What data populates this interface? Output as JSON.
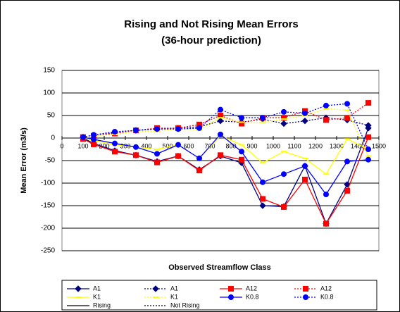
{
  "chart_data": {
    "type": "line",
    "title": "Rising and Not Rising Mean Errors",
    "subtitle": "(36-hour prediction)",
    "x_label": "Observed Streamflow Class",
    "y_label": "Mean Error (m3/s)",
    "x": [
      100,
      150,
      250,
      350,
      450,
      550,
      650,
      750,
      850,
      950,
      1050,
      1150,
      1250,
      1350,
      1450
    ],
    "xlim": [
      0,
      1500
    ],
    "xticks": [
      0,
      100,
      200,
      300,
      400,
      500,
      600,
      700,
      800,
      900,
      1000,
      1100,
      1200,
      1300,
      1400,
      1500
    ],
    "ylim": [
      -250,
      150
    ],
    "yticks": [
      -250,
      -200,
      -150,
      -100,
      -50,
      0,
      50,
      100,
      150
    ],
    "grid": true,
    "legend": "bottom",
    "series": [
      {
        "name": "A1",
        "color": "#000080",
        "marker": "diamond",
        "dash": false,
        "values": [
          0,
          -12,
          -28,
          -38,
          -52,
          -40,
          -70,
          -40,
          -55,
          -150,
          -152,
          -62,
          -190,
          -103,
          22
        ]
      },
      {
        "name": "A1",
        "color": "#000080",
        "marker": "diamond",
        "dash": true,
        "values": [
          2,
          5,
          12,
          17,
          20,
          22,
          25,
          38,
          35,
          42,
          32,
          38,
          45,
          40,
          28
        ]
      },
      {
        "name": "A12",
        "color": "#ff0000",
        "marker": "square",
        "dash": false,
        "values": [
          -2,
          -14,
          -30,
          -38,
          -54,
          -40,
          -72,
          -38,
          -48,
          -135,
          -153,
          -92,
          -190,
          -117,
          2
        ]
      },
      {
        "name": "A12",
        "color": "#ff0000",
        "marker": "square",
        "dash": true,
        "values": [
          2,
          5,
          10,
          17,
          22,
          22,
          30,
          50,
          32,
          45,
          45,
          60,
          40,
          45,
          78
        ]
      },
      {
        "name": "K1",
        "color": "#ffff00",
        "marker": "dash",
        "dash": false,
        "values": [
          0,
          -5,
          -15,
          -20,
          -25,
          -15,
          -45,
          5,
          -15,
          -55,
          -30,
          -45,
          -80,
          -2,
          -25
        ]
      },
      {
        "name": "K1",
        "color": "#ffff00",
        "marker": "dash",
        "dash": true,
        "values": [
          2,
          5,
          8,
          15,
          15,
          20,
          18,
          45,
          35,
          35,
          42,
          50,
          65,
          62,
          -40
        ]
      },
      {
        "name": "K0.8",
        "color": "#0000ff",
        "marker": "circle",
        "dash": false,
        "values": [
          2,
          -3,
          -12,
          -20,
          -35,
          -15,
          -45,
          8,
          -30,
          -98,
          -80,
          -62,
          -125,
          -52,
          -48
        ]
      },
      {
        "name": "K0.8",
        "color": "#0000ff",
        "marker": "circle",
        "dash": true,
        "values": [
          2,
          7,
          14,
          17,
          20,
          20,
          22,
          63,
          45,
          45,
          58,
          55,
          72,
          76,
          -25
        ]
      }
    ],
    "line_style_legend": [
      {
        "name": "Rising",
        "color": "#000000",
        "dash": false
      },
      {
        "name": "Not Rising",
        "color": "#000000",
        "dash": true
      }
    ]
  }
}
